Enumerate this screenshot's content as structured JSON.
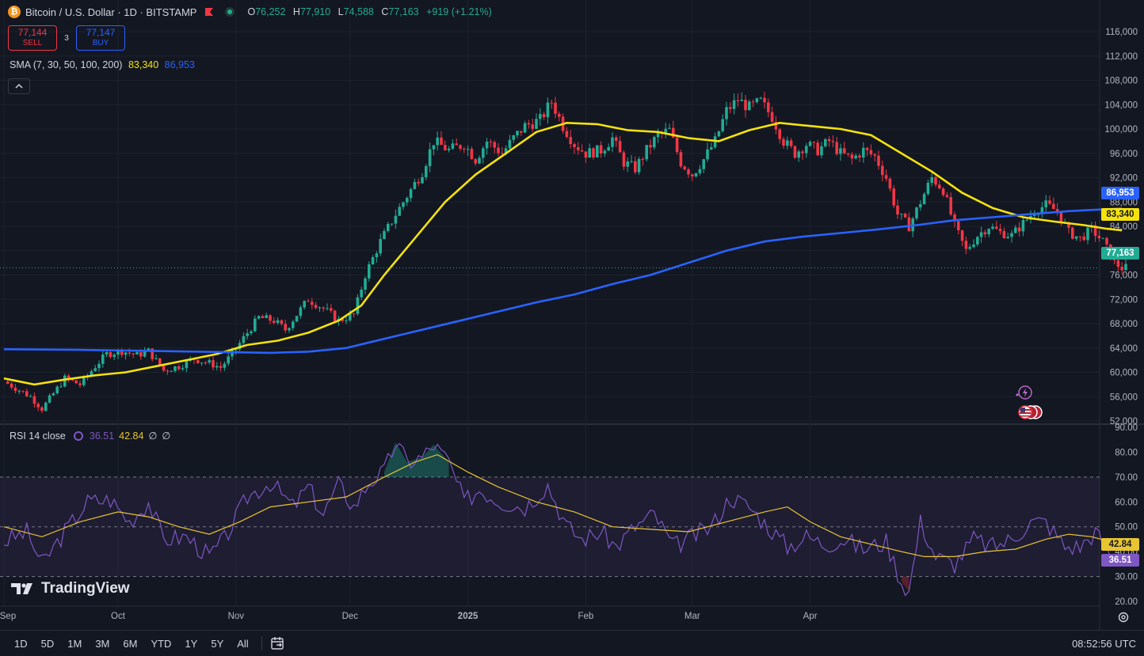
{
  "header": {
    "symbol": "Bitcoin / U.S. Dollar · 1D · BITSTAMP",
    "open_label": "O",
    "open": "76,252",
    "high_label": "H",
    "high": "77,910",
    "low_label": "L",
    "low": "74,588",
    "close_label": "C",
    "close": "77,163",
    "change": "+919 (+1.21%)"
  },
  "trade": {
    "sell_price": "77,144",
    "sell_label": "SELL",
    "spread": "3",
    "buy_price": "77,147",
    "buy_label": "BUY"
  },
  "sma_legend": {
    "label": "SMA (7, 30, 50, 100, 200)",
    "value_50": "83,340",
    "value_200": "86,953"
  },
  "rsi_legend": {
    "label": "RSI 14 close",
    "rsi": "36.51",
    "ma": "42.84",
    "extra1": "∅",
    "extra2": "∅"
  },
  "price_tags": {
    "sma200": "86,953",
    "sma50": "83,340",
    "last": "77,163"
  },
  "rsi_tags": {
    "ma": "42.84",
    "rsi": "36.51"
  },
  "logo_text": "TradingView",
  "ranges": [
    "1D",
    "5D",
    "1M",
    "3M",
    "6M",
    "YTD",
    "1Y",
    "5Y",
    "All"
  ],
  "clock": "08:52:56 UTC",
  "colors": {
    "bg": "#131722",
    "up": "#22ab94",
    "down": "#f23645",
    "sma50": "#f5e20c",
    "sma200": "#2962ff",
    "rsi": "#7e57c2",
    "rsi_ma": "#e8c530"
  },
  "chart_data": [
    {
      "type": "candlestick",
      "title": "Bitcoin / U.S. Dollar · 1D · BITSTAMP",
      "x_ticks": [
        "Sep",
        "Oct",
        "Nov",
        "Dec",
        "2025",
        "Feb",
        "Mar",
        "Apr"
      ],
      "y_ticks": [
        "52,000",
        "56,000",
        "60,000",
        "64,000",
        "68,000",
        "72,000",
        "76,000",
        "80,000",
        "84,000",
        "88,000",
        "92,000",
        "96,000",
        "100,000",
        "104,000",
        "108,000",
        "112,000",
        "116,000"
      ],
      "ylim": [
        49000,
        117500
      ],
      "close_path": [
        [
          0,
          58500
        ],
        [
          7,
          56000
        ],
        [
          10,
          54000
        ],
        [
          16,
          59000
        ],
        [
          20,
          58000
        ],
        [
          24,
          61000
        ],
        [
          27,
          63000
        ],
        [
          31,
          63500
        ],
        [
          35,
          62800
        ],
        [
          38,
          63500
        ],
        [
          42,
          60300
        ],
        [
          46,
          61000
        ],
        [
          50,
          62200
        ],
        [
          54,
          61500
        ],
        [
          57,
          60800
        ],
        [
          60,
          63000
        ],
        [
          64,
          66500
        ],
        [
          67,
          69000
        ],
        [
          71,
          68500
        ],
        [
          74,
          67000
        ],
        [
          77,
          69500
        ],
        [
          80,
          72000
        ],
        [
          84,
          70500
        ],
        [
          88,
          68500
        ],
        [
          92,
          69500
        ],
        [
          95,
          76000
        ],
        [
          99,
          81500
        ],
        [
          103,
          86000
        ],
        [
          106,
          89000
        ],
        [
          110,
          93000
        ],
        [
          113,
          98000
        ],
        [
          117,
          96500
        ],
        [
          121,
          97500
        ],
        [
          124,
          95000
        ],
        [
          127,
          98000
        ],
        [
          131,
          96000
        ],
        [
          134,
          98500
        ],
        [
          137,
          100500
        ],
        [
          141,
          101500
        ],
        [
          144,
          104500
        ],
        [
          147,
          100500
        ],
        [
          150,
          97500
        ],
        [
          153,
          96000
        ],
        [
          157,
          96500
        ],
        [
          160,
          98500
        ],
        [
          163,
          94500
        ],
        [
          166,
          93500
        ],
        [
          169,
          96500
        ],
        [
          172,
          99000
        ],
        [
          175,
          99800
        ],
        [
          178,
          94500
        ],
        [
          181,
          92500
        ],
        [
          184,
          95000
        ],
        [
          187,
          98000
        ],
        [
          190,
          103000
        ],
        [
          193,
          104800
        ],
        [
          196,
          103500
        ],
        [
          199,
          104500
        ],
        [
          202,
          102000
        ],
        [
          205,
          98000
        ],
        [
          208,
          96000
        ],
        [
          211,
          97500
        ],
        [
          214,
          96500
        ],
        [
          217,
          98000
        ],
        [
          220,
          96000
        ],
        [
          223,
          95000
        ],
        [
          226,
          96500
        ],
        [
          229,
          95500
        ],
        [
          232,
          92000
        ],
        [
          235,
          86000
        ],
        [
          238,
          84000
        ],
        [
          241,
          88000
        ],
        [
          244,
          92000
        ],
        [
          247,
          90000
        ],
        [
          250,
          84000
        ],
        [
          253,
          80000
        ],
        [
          256,
          82500
        ],
        [
          259,
          84000
        ],
        [
          262,
          83000
        ],
        [
          265,
          82500
        ],
        [
          268,
          84500
        ],
        [
          271,
          86500
        ],
        [
          274,
          87500
        ],
        [
          277,
          86500
        ],
        [
          280,
          83000
        ],
        [
          283,
          82000
        ],
        [
          286,
          83500
        ],
        [
          289,
          81500
        ],
        [
          292,
          78000
        ],
        [
          294,
          77163
        ]
      ],
      "n_days": 296,
      "last_price": 77163,
      "series": [
        {
          "name": "SMA 50",
          "value_last": 83340,
          "values": [
            [
              0,
              59000
            ],
            [
              8,
              58000
            ],
            [
              16,
              58800
            ],
            [
              24,
              59500
            ],
            [
              32,
              60000
            ],
            [
              40,
              61000
            ],
            [
              48,
              62000
            ],
            [
              56,
              63000
            ],
            [
              64,
              64500
            ],
            [
              72,
              65200
            ],
            [
              80,
              66500
            ],
            [
              88,
              68500
            ],
            [
              94,
              71000
            ],
            [
              100,
              76000
            ],
            [
              108,
              82000
            ],
            [
              116,
              88000
            ],
            [
              124,
              92500
            ],
            [
              132,
              96000
            ],
            [
              140,
              99500
            ],
            [
              148,
              101000
            ],
            [
              156,
              100800
            ],
            [
              164,
              99800
            ],
            [
              172,
              99500
            ],
            [
              180,
              98500
            ],
            [
              188,
              98000
            ],
            [
              196,
              99800
            ],
            [
              204,
              101000
            ],
            [
              212,
              100500
            ],
            [
              220,
              100000
            ],
            [
              228,
              99000
            ],
            [
              236,
              96000
            ],
            [
              244,
              93000
            ],
            [
              252,
              89500
            ],
            [
              260,
              87000
            ],
            [
              268,
              85500
            ],
            [
              276,
              84800
            ],
            [
              284,
              84200
            ],
            [
              290,
              83600
            ],
            [
              294,
              83340
            ]
          ]
        },
        {
          "name": "SMA 200",
          "value_last": 86953,
          "values": [
            [
              0,
              63800
            ],
            [
              20,
              63700
            ],
            [
              40,
              63500
            ],
            [
              60,
              63300
            ],
            [
              70,
              63200
            ],
            [
              80,
              63400
            ],
            [
              90,
              64000
            ],
            [
              100,
              65500
            ],
            [
              110,
              67000
            ],
            [
              120,
              68500
            ],
            [
              130,
              70000
            ],
            [
              140,
              71500
            ],
            [
              150,
              72800
            ],
            [
              160,
              74500
            ],
            [
              170,
              76000
            ],
            [
              180,
              78000
            ],
            [
              190,
              80000
            ],
            [
              200,
              81500
            ],
            [
              210,
              82300
            ],
            [
              220,
              82900
            ],
            [
              230,
              83500
            ],
            [
              240,
              84200
            ],
            [
              250,
              85000
            ],
            [
              260,
              85500
            ],
            [
              270,
              86000
            ],
            [
              280,
              86500
            ],
            [
              294,
              86953
            ]
          ]
        }
      ]
    },
    {
      "type": "line",
      "title": "RSI 14 close",
      "y_ticks": [
        "20.00",
        "30.00",
        "40.00",
        "50.00",
        "60.00",
        "70.00",
        "80.00",
        "90.00"
      ],
      "ylim": [
        17,
        91
      ],
      "band": [
        30,
        70
      ],
      "mid": 50,
      "series": [
        {
          "name": "RSI",
          "value_last": 36.51,
          "values": [
            [
              0,
              44
            ],
            [
              6,
              48
            ],
            [
              10,
              35
            ],
            [
              16,
              48
            ],
            [
              22,
              60
            ],
            [
              28,
              61
            ],
            [
              33,
              52
            ],
            [
              38,
              60
            ],
            [
              42,
              45
            ],
            [
              48,
              46
            ],
            [
              54,
              38
            ],
            [
              58,
              45
            ],
            [
              64,
              62
            ],
            [
              70,
              68
            ],
            [
              76,
              58
            ],
            [
              80,
              66
            ],
            [
              84,
              55
            ],
            [
              88,
              67
            ],
            [
              92,
              58
            ],
            [
              96,
              68
            ],
            [
              100,
              72
            ],
            [
              103,
              84
            ],
            [
              106,
              76
            ],
            [
              110,
              78
            ],
            [
              113,
              83
            ],
            [
              117,
              76
            ],
            [
              121,
              60
            ],
            [
              125,
              65
            ],
            [
              131,
              60
            ],
            [
              137,
              58
            ],
            [
              143,
              67
            ],
            [
              148,
              50
            ],
            [
              152,
              45
            ],
            [
              157,
              48
            ],
            [
              161,
              42
            ],
            [
              166,
              50
            ],
            [
              171,
              55
            ],
            [
              176,
              42
            ],
            [
              181,
              46
            ],
            [
              186,
              50
            ],
            [
              191,
              62
            ],
            [
              196,
              58
            ],
            [
              201,
              50
            ],
            [
              206,
              42
            ],
            [
              211,
              46
            ],
            [
              216,
              43
            ],
            [
              221,
              45
            ],
            [
              226,
              41
            ],
            [
              232,
              44
            ],
            [
              236,
              28
            ],
            [
              238,
              24
            ],
            [
              241,
              52
            ],
            [
              245,
              38
            ],
            [
              250,
              35
            ],
            [
              255,
              45
            ],
            [
              260,
              42
            ],
            [
              265,
              45
            ],
            [
              270,
              52
            ],
            [
              274,
              52
            ],
            [
              279,
              42
            ],
            [
              283,
              42
            ],
            [
              287,
              48
            ],
            [
              291,
              38
            ],
            [
              294,
              36.51
            ]
          ]
        },
        {
          "name": "RSI MA",
          "value_last": 42.84,
          "values": [
            [
              0,
              50
            ],
            [
              10,
              46
            ],
            [
              20,
              52
            ],
            [
              30,
              56
            ],
            [
              38,
              54
            ],
            [
              46,
              50
            ],
            [
              54,
              47
            ],
            [
              62,
              52
            ],
            [
              70,
              58
            ],
            [
              80,
              60
            ],
            [
              90,
              62
            ],
            [
              100,
              70
            ],
            [
              108,
              76
            ],
            [
              114,
              79
            ],
            [
              122,
              72
            ],
            [
              130,
              66
            ],
            [
              140,
              60
            ],
            [
              150,
              56
            ],
            [
              160,
              50
            ],
            [
              170,
              49
            ],
            [
              180,
              48
            ],
            [
              190,
              52
            ],
            [
              200,
              56
            ],
            [
              206,
              58
            ],
            [
              212,
              52
            ],
            [
              220,
              46
            ],
            [
              228,
              43
            ],
            [
              236,
              40
            ],
            [
              242,
              38
            ],
            [
              250,
              38
            ],
            [
              258,
              40
            ],
            [
              266,
              41
            ],
            [
              274,
              45
            ],
            [
              280,
              47
            ],
            [
              286,
              46
            ],
            [
              294,
              42.84
            ]
          ]
        }
      ]
    }
  ]
}
